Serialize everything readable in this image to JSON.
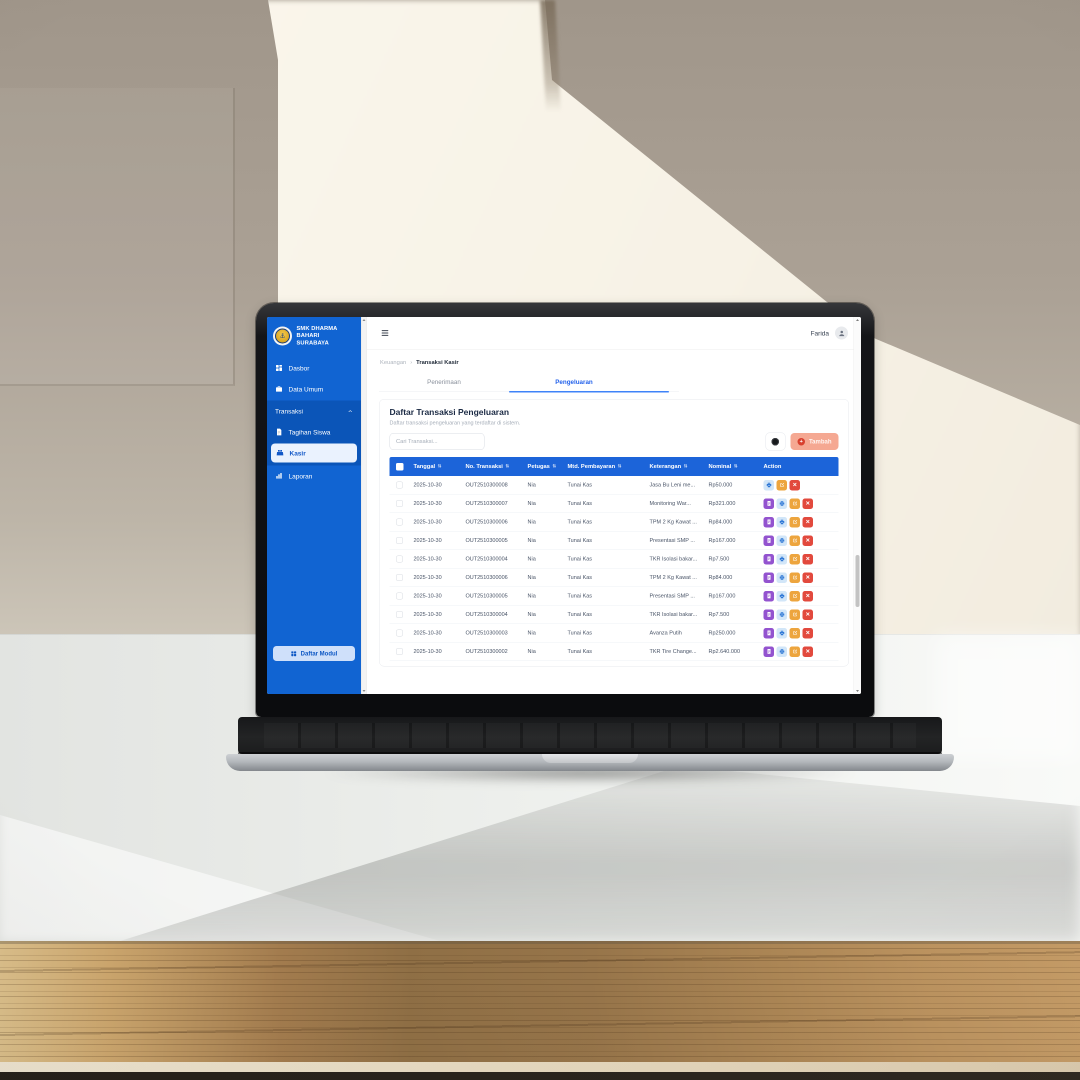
{
  "colors": {
    "sidebar_blue": "#1164d2",
    "sidebar_group_blue": "#0b55b8",
    "active_item_bg": "#eaf2fe",
    "table_header_blue": "#1c64d9",
    "tab_active_blue": "#2563eb",
    "add_button_bg": "#f5a892",
    "add_button_icon": "#d8402e",
    "action_receipt_purple": "#9353cf",
    "action_print_bg": "#d2e6f8",
    "action_print_icon": "#2f78d6",
    "action_edit_orange": "#eda53e",
    "action_delete_red": "#e2493d"
  },
  "icons": {
    "sidebar_toggle": "bars-icon",
    "logo": "school-emblem-anchor",
    "logo_glyph": "⚓",
    "user": "person-icon",
    "visibility_button": "dark-circle-icon",
    "add_glyph": "+",
    "sort_glyph": "⇅",
    "delete_glyph": "✕",
    "actions": [
      "receipt-icon",
      "printer-icon",
      "edit-icon",
      "close-icon"
    ]
  },
  "sidebar": {
    "logo_title": "SMK DHARMA BAHARI",
    "logo_subtitle": "SURABAYA",
    "items": [
      {
        "label": "Dasbor"
      },
      {
        "label": "Data Umum"
      },
      {
        "label": "Transaksi"
      },
      {
        "label": "Tagihan Siswa"
      },
      {
        "label": "Kasir"
      },
      {
        "label": "Laporan"
      }
    ],
    "footer_button": "Daftar Modul"
  },
  "topbar": {
    "user": "Farida"
  },
  "breadcrumb": {
    "section": "Keuangan",
    "separator": "›",
    "current": "Transaksi Kasir"
  },
  "tabs": [
    {
      "label": "Penerimaan",
      "active": false
    },
    {
      "label": "Pengeluaran",
      "active": true
    }
  ],
  "card": {
    "title": "Daftar Transaksi Pengeluaran",
    "subtitle": "Daftar transaksi pengeluaran yang terdaftar di sistem.",
    "search_placeholder": "Cari Transaksi...",
    "add_button": "Tambah"
  },
  "table": {
    "headers": [
      "Tanggal",
      "No. Transaksi",
      "Petugas",
      "Mtd. Pembayaran",
      "Keterangan",
      "Nominal",
      "Action"
    ],
    "sortable": [
      true,
      true,
      true,
      true,
      true,
      true,
      false
    ],
    "rows": [
      {
        "tanggal": "2025-10-30",
        "no": "OUT2510300008",
        "petugas": "Nia",
        "metode": "Tunai Kas",
        "keterangan": "Jasa Bu Leni me...",
        "nominal": "Rp50.000",
        "actions": [
          "print",
          "edit",
          "delete"
        ]
      },
      {
        "tanggal": "2025-10-30",
        "no": "OUT2510300007",
        "petugas": "Nia",
        "metode": "Tunai Kas",
        "keterangan": "Monitoring War...",
        "nominal": "Rp321.000",
        "actions": [
          "receipt",
          "print",
          "edit",
          "delete"
        ]
      },
      {
        "tanggal": "2025-10-30",
        "no": "OUT2510300006",
        "petugas": "Nia",
        "metode": "Tunai Kas",
        "keterangan": "TPM 2 Kg Kawat ...",
        "nominal": "Rp84.000",
        "actions": [
          "receipt",
          "print",
          "edit",
          "delete"
        ]
      },
      {
        "tanggal": "2025-10-30",
        "no": "OUT2510300005",
        "petugas": "Nia",
        "metode": "Tunai Kas",
        "keterangan": "Presentasi SMP ...",
        "nominal": "Rp167.000",
        "actions": [
          "receipt",
          "print",
          "edit",
          "delete"
        ]
      },
      {
        "tanggal": "2025-10-30",
        "no": "OUT2510300004",
        "petugas": "Nia",
        "metode": "Tunai Kas",
        "keterangan": "TKR Isolasi bakar...",
        "nominal": "Rp7.500",
        "actions": [
          "receipt",
          "print",
          "edit",
          "delete"
        ]
      },
      {
        "tanggal": "2025-10-30",
        "no": "OUT2510300006",
        "petugas": "Nia",
        "metode": "Tunai Kas",
        "keterangan": "TPM 2 Kg Kawat ...",
        "nominal": "Rp84.000",
        "actions": [
          "receipt",
          "print",
          "edit",
          "delete"
        ]
      },
      {
        "tanggal": "2025-10-30",
        "no": "OUT2510300005",
        "petugas": "Nia",
        "metode": "Tunai Kas",
        "keterangan": "Presentasi SMP ...",
        "nominal": "Rp167.000",
        "actions": [
          "receipt",
          "print",
          "edit",
          "delete"
        ]
      },
      {
        "tanggal": "2025-10-30",
        "no": "OUT2510300004",
        "petugas": "Nia",
        "metode": "Tunai Kas",
        "keterangan": "TKR Isolasi bakar...",
        "nominal": "Rp7.500",
        "actions": [
          "receipt",
          "print",
          "edit",
          "delete"
        ]
      },
      {
        "tanggal": "2025-10-30",
        "no": "OUT2510300003",
        "petugas": "Nia",
        "metode": "Tunai Kas",
        "keterangan": "Avanza Putih",
        "nominal": "Rp250.000",
        "actions": [
          "receipt",
          "print",
          "edit",
          "delete"
        ]
      },
      {
        "tanggal": "2025-10-30",
        "no": "OUT2510300002",
        "petugas": "Nia",
        "metode": "Tunai Kas",
        "keterangan": "TKR Tire Change...",
        "nominal": "Rp2.640.000",
        "actions": [
          "receipt",
          "print",
          "edit",
          "delete"
        ]
      }
    ]
  }
}
